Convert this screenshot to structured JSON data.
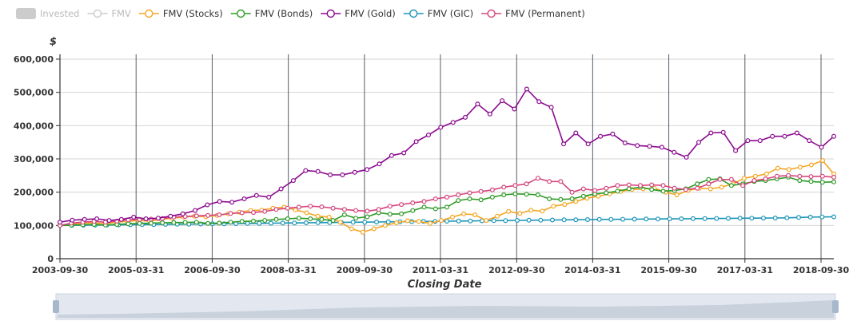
{
  "chart_data": {
    "type": "line",
    "ylabel": "$",
    "xlabel": "Closing Date",
    "ylim": [
      0,
      600000
    ],
    "yticks": [
      0,
      100000,
      200000,
      300000,
      400000,
      500000,
      600000
    ],
    "ytick_labels": [
      "0",
      "100,000",
      "200,000",
      "300,000",
      "400,000",
      "500,000",
      "600,000"
    ],
    "xlim": [
      "2003-09-30",
      "2018-12-31"
    ],
    "xticks": [
      "2003-09-30",
      "2005-03-31",
      "2006-09-30",
      "2008-03-31",
      "2009-09-30",
      "2011-03-31",
      "2012-09-30",
      "2014-03-31",
      "2015-09-30",
      "2017-03-31",
      "2018-09-30"
    ],
    "legend": [
      {
        "name": "Invested",
        "color": "#cccccc",
        "marker": "rect",
        "active": false
      },
      {
        "name": "FMV",
        "color": "#cccccc",
        "marker": "circle",
        "active": false
      },
      {
        "name": "FMV (Stocks)",
        "color": "#f5a623",
        "marker": "circle",
        "active": true
      },
      {
        "name": "FMV (Bonds)",
        "color": "#2e9b27",
        "marker": "circle",
        "active": true
      },
      {
        "name": "FMV (Gold)",
        "color": "#8b0a8f",
        "marker": "circle",
        "active": true
      },
      {
        "name": "FMV (GIC)",
        "color": "#1b95b8",
        "marker": "circle",
        "active": true
      },
      {
        "name": "FMV (Permanent)",
        "color": "#d6467d",
        "marker": "circle",
        "active": true
      }
    ],
    "series": [
      {
        "name": "FMV (GIC)",
        "color": "#1b95b8",
        "values": [
          100000,
          100300,
          100700,
          101000,
          101300,
          101700,
          102000,
          102400,
          102800,
          103200,
          103600,
          104000,
          104400,
          104800,
          105200,
          105600,
          106000,
          106400,
          106800,
          107200,
          107600,
          108000,
          108400,
          108800,
          109200,
          109600,
          110000,
          110400,
          110800,
          111200,
          111600,
          112000,
          112400,
          112800,
          113200,
          113600,
          114000,
          114400,
          114800,
          115200,
          115600,
          116000,
          116400,
          116800,
          117200,
          117600,
          118000,
          118300,
          118600,
          118900,
          119200,
          119500,
          119800,
          120100,
          120400,
          120700,
          121000,
          121300,
          121600,
          121900,
          122200,
          122500,
          123000,
          124000,
          125000,
          125500,
          126000
        ]
      },
      {
        "name": "FMV (Stocks)",
        "color": "#f5a623",
        "values": [
          100000,
          104000,
          106000,
          108000,
          105000,
          110000,
          112000,
          115000,
          113000,
          118000,
          122000,
          125000,
          128000,
          126000,
          130000,
          135000,
          140000,
          145000,
          146000,
          152000,
          155000,
          147000,
          138000,
          128000,
          125000,
          110000,
          90000,
          80000,
          90000,
          100000,
          108000,
          114000,
          112000,
          106000,
          115000,
          125000,
          135000,
          132000,
          115000,
          128000,
          142000,
          136000,
          146000,
          143000,
          158000,
          163000,
          172000,
          182000,
          188000,
          195000,
          202000,
          208000,
          210000,
          212000,
          200000,
          192000,
          205000,
          212000,
          210000,
          215000,
          225000,
          242000,
          248000,
          255000,
          272000,
          268000,
          275000,
          282000,
          295000,
          255000
        ]
      },
      {
        "name": "FMV (Bonds)",
        "color": "#2e9b27",
        "values": [
          100000,
          101000,
          102000,
          103000,
          101000,
          103000,
          105000,
          106000,
          107000,
          108000,
          108500,
          109000,
          110000,
          106000,
          107000,
          110000,
          112000,
          113000,
          115000,
          118000,
          120000,
          122000,
          120000,
          118000,
          115000,
          132000,
          122000,
          126000,
          138000,
          134000,
          135000,
          145000,
          155000,
          150000,
          155000,
          175000,
          180000,
          177000,
          185000,
          192000,
          195000,
          194000,
          192000,
          180000,
          178000,
          180000,
          188000,
          195000,
          198000,
          203000,
          210000,
          215000,
          208000,
          203000,
          205000,
          210000,
          225000,
          238000,
          240000,
          220000,
          225000,
          232000,
          235000,
          240000,
          245000,
          235000,
          232000,
          230000,
          231000
        ]
      },
      {
        "name": "FMV (Permanent)",
        "color": "#d6467d",
        "values": [
          100000,
          107000,
          110000,
          112000,
          110000,
          113000,
          117000,
          118000,
          119000,
          121000,
          125000,
          127000,
          129000,
          130000,
          132000,
          136000,
          138000,
          139000,
          142000,
          148000,
          152000,
          155000,
          158000,
          156000,
          152000,
          148000,
          145000,
          143000,
          148000,
          158000,
          163000,
          168000,
          172000,
          180000,
          185000,
          192000,
          198000,
          202000,
          207000,
          215000,
          220000,
          225000,
          242000,
          232000,
          232000,
          200000,
          210000,
          205000,
          212000,
          220000,
          222000,
          220000,
          222000,
          220000,
          212000,
          208000,
          212000,
          225000,
          238000,
          238000,
          220000,
          235000,
          240000,
          248000,
          250000,
          248000,
          247000,
          248000,
          245000
        ]
      },
      {
        "name": "FMV (Gold)",
        "color": "#8b0a8f",
        "values": [
          110000,
          116000,
          118000,
          120000,
          115000,
          118000,
          125000,
          120000,
          122000,
          128000,
          135000,
          145000,
          162000,
          172000,
          170000,
          180000,
          190000,
          185000,
          210000,
          235000,
          265000,
          262000,
          252000,
          252000,
          260000,
          268000,
          285000,
          310000,
          318000,
          352000,
          372000,
          395000,
          410000,
          425000,
          465000,
          435000,
          475000,
          450000,
          510000,
          472000,
          455000,
          345000,
          378000,
          345000,
          368000,
          375000,
          348000,
          340000,
          338000,
          335000,
          320000,
          305000,
          350000,
          378000,
          380000,
          325000,
          355000,
          355000,
          368000,
          368000,
          378000,
          355000,
          335000,
          368000
        ]
      }
    ]
  }
}
